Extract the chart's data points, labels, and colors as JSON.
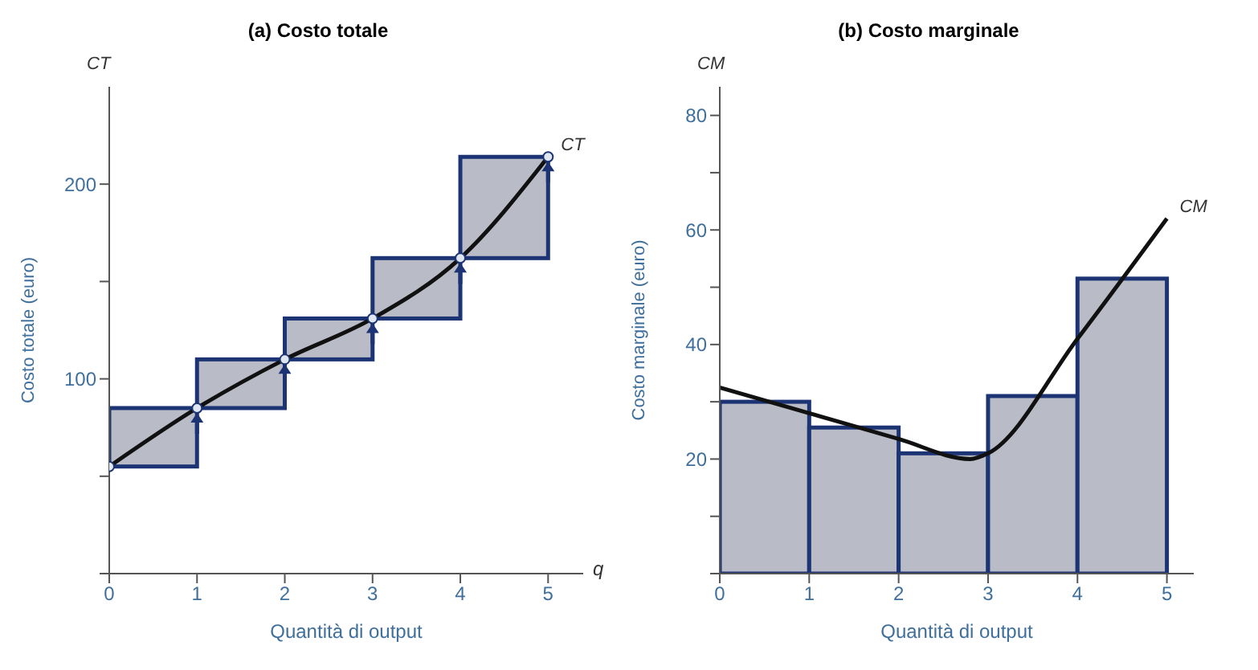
{
  "chart_data": [
    {
      "type": "bar",
      "title": "(a) Costo totale",
      "xlabel": "Quantità di output",
      "ylabel": "Costo totale (euro)",
      "annotations": [
        "CT",
        "q"
      ],
      "xlim": [
        0,
        5.4
      ],
      "xticks": [
        0,
        1,
        2,
        3,
        4,
        5
      ],
      "ylim": [
        0,
        250
      ],
      "yticks": [
        {
          "value": 0,
          "label": null
        },
        {
          "value": 50,
          "label": null
        },
        100,
        {
          "value": 150,
          "label": null
        },
        200
      ],
      "series": [
        {
          "x": [
            0.5,
            1.5,
            2.5,
            3.5,
            4.5
          ],
          "base": [
            55,
            85,
            110,
            131,
            162
          ],
          "values": [
            30,
            25,
            21,
            31,
            52
          ],
          "color": "#b9bcc6"
        },
        {
          "type": "line",
          "name": "CT",
          "x": [
            0,
            1,
            2,
            3,
            4,
            5
          ],
          "values": [
            55,
            85,
            110,
            131,
            162,
            214
          ],
          "color": "#111111",
          "marker": "circle"
        }
      ]
    },
    {
      "type": "bar",
      "title": "(b) Costo marginale",
      "xlabel": "Quantità di output",
      "ylabel": "Costo marginale (euro)",
      "annotations": [
        "CM"
      ],
      "xlim": [
        0,
        5.3
      ],
      "xticks": [
        0,
        1,
        2,
        3,
        4,
        5
      ],
      "ylim": [
        0,
        85
      ],
      "yticks": [
        {
          "value": 0,
          "label": null
        },
        {
          "value": 10,
          "label": null
        },
        20,
        {
          "value": 30,
          "label": null
        },
        40,
        {
          "value": 50,
          "label": null
        },
        60,
        {
          "value": 70,
          "label": null
        },
        80
      ],
      "series": [
        {
          "x": [
            0.5,
            1.5,
            2.5,
            3.5,
            4.5
          ],
          "values": [
            30,
            25.5,
            21,
            31,
            51.5
          ],
          "color": "#b9bcc6"
        },
        {
          "type": "line",
          "name": "CM",
          "x": [
            0,
            1,
            2,
            2.8,
            3,
            4,
            5
          ],
          "values": [
            32.5,
            28,
            23.5,
            20,
            21,
            41,
            62
          ],
          "color": "#111111",
          "marker": "none"
        }
      ]
    }
  ]
}
